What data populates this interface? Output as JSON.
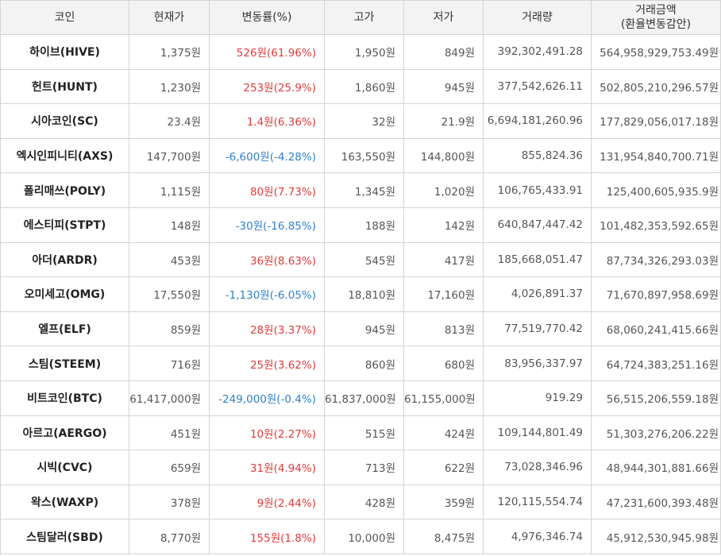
{
  "headers": {
    "coin": "코인",
    "price": "현재가",
    "change": "변동률(%)",
    "high": "고가",
    "low": "저가",
    "volume": "거래량",
    "amount_line1": "거래금액",
    "amount_line2": "(환율변동감안)"
  },
  "colors": {
    "up": "#e23b3b",
    "down": "#2f7fd0",
    "header_bg": "#f3f3f3",
    "border": "#d4d4d4"
  },
  "rows": [
    {
      "coin": "하이브(HIVE)",
      "price": "1,375원",
      "change": "526원(61.96%)",
      "dir": "up",
      "high": "1,950원",
      "low": "849원",
      "volume": "392,302,491.28",
      "amount": "564,958,929,753.49원"
    },
    {
      "coin": "헌트(HUNT)",
      "price": "1,230원",
      "change": "253원(25.9%)",
      "dir": "up",
      "high": "1,860원",
      "low": "945원",
      "volume": "377,542,626.11",
      "amount": "502,805,210,296.57원"
    },
    {
      "coin": "시아코인(SC)",
      "price": "23.4원",
      "change": "1.4원(6.36%)",
      "dir": "up",
      "high": "32원",
      "low": "21.9원",
      "volume": "6,694,181,260.96",
      "amount": "177,829,056,017.18원"
    },
    {
      "coin": "엑시인피니티(AXS)",
      "price": "147,700원",
      "change": "-6,600원(-4.28%)",
      "dir": "down",
      "high": "163,550원",
      "low": "144,800원",
      "volume": "855,824.36",
      "amount": "131,954,840,700.71원"
    },
    {
      "coin": "폴리매쓰(POLY)",
      "price": "1,115원",
      "change": "80원(7.73%)",
      "dir": "up",
      "high": "1,345원",
      "low": "1,020원",
      "volume": "106,765,433.91",
      "amount": "125,400,605,935.9원"
    },
    {
      "coin": "에스티피(STPT)",
      "price": "148원",
      "change": "-30원(-16.85%)",
      "dir": "down",
      "high": "188원",
      "low": "142원",
      "volume": "640,847,447.42",
      "amount": "101,482,353,592.65원"
    },
    {
      "coin": "아더(ARDR)",
      "price": "453원",
      "change": "36원(8.63%)",
      "dir": "up",
      "high": "545원",
      "low": "417원",
      "volume": "185,668,051.47",
      "amount": "87,734,326,293.03원"
    },
    {
      "coin": "오미세고(OMG)",
      "price": "17,550원",
      "change": "-1,130원(-6.05%)",
      "dir": "down",
      "high": "18,810원",
      "low": "17,160원",
      "volume": "4,026,891.37",
      "amount": "71,670,897,958.69원"
    },
    {
      "coin": "엘프(ELF)",
      "price": "859원",
      "change": "28원(3.37%)",
      "dir": "up",
      "high": "945원",
      "low": "813원",
      "volume": "77,519,770.42",
      "amount": "68,060,241,415.66원"
    },
    {
      "coin": "스팀(STEEM)",
      "price": "716원",
      "change": "25원(3.62%)",
      "dir": "up",
      "high": "860원",
      "low": "680원",
      "volume": "83,956,337.97",
      "amount": "64,724,383,251.16원"
    },
    {
      "coin": "비트코인(BTC)",
      "price": "61,417,000원",
      "change": "-249,000원(-0.4%)",
      "dir": "down",
      "high": "61,837,000원",
      "low": "61,155,000원",
      "volume": "919.29",
      "amount": "56,515,206,559.18원"
    },
    {
      "coin": "아르고(AERGO)",
      "price": "451원",
      "change": "10원(2.27%)",
      "dir": "up",
      "high": "515원",
      "low": "424원",
      "volume": "109,144,801.49",
      "amount": "51,303,276,206.22원"
    },
    {
      "coin": "시빅(CVC)",
      "price": "659원",
      "change": "31원(4.94%)",
      "dir": "up",
      "high": "713원",
      "low": "622원",
      "volume": "73,028,346.96",
      "amount": "48,944,301,881.66원"
    },
    {
      "coin": "왁스(WAXP)",
      "price": "378원",
      "change": "9원(2.44%)",
      "dir": "up",
      "high": "428원",
      "low": "359원",
      "volume": "120,115,554.74",
      "amount": "47,231,600,393.48원"
    },
    {
      "coin": "스팀달러(SBD)",
      "price": "8,770원",
      "change": "155원(1.8%)",
      "dir": "up",
      "high": "10,000원",
      "low": "8,475원",
      "volume": "4,976,346.74",
      "amount": "45,912,530,945.98원"
    }
  ]
}
